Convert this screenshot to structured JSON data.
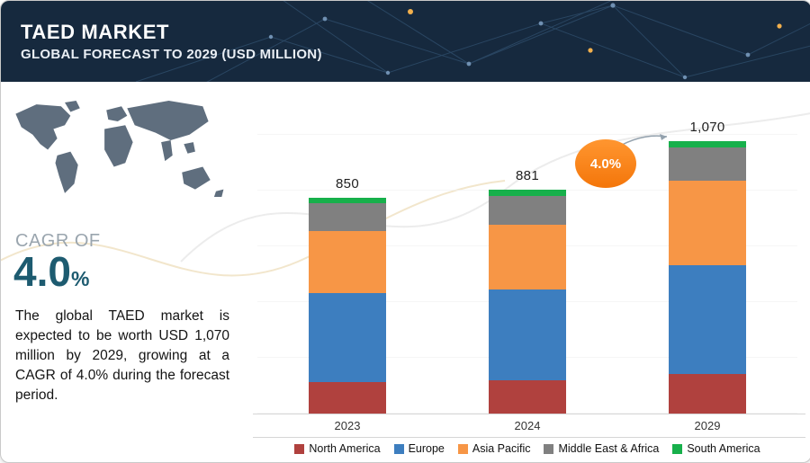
{
  "header": {
    "title": "TAED MARKET",
    "subtitle": "GLOBAL FORECAST TO 2029 (USD MILLION)"
  },
  "sidebar": {
    "cagr_label": "CAGR OF",
    "cagr_value": "4.0",
    "cagr_percent": "%",
    "description": "The global TAED market is expected to be worth USD 1,070 million by 2029, growing at a CAGR of 4.0% during the forecast period."
  },
  "chart_data": {
    "type": "bar",
    "stacked": true,
    "title": "TAED Market, Global Forecast to 2029 (USD Million)",
    "xlabel": "",
    "ylabel": "USD Million",
    "ylim": [
      0,
      1100
    ],
    "grid": true,
    "legend_position": "bottom",
    "categories": [
      "2023",
      "2024",
      "2029"
    ],
    "totals": [
      850,
      881,
      1070
    ],
    "total_labels": [
      "850",
      "881",
      "1,070"
    ],
    "series": [
      {
        "name": "North America",
        "color": "#b0413e",
        "values": [
          128,
          133,
          158
        ]
      },
      {
        "name": "Europe",
        "color": "#3d7ebf",
        "values": [
          347,
          357,
          428
        ]
      },
      {
        "name": "Asia Pacific",
        "color": "#f79646",
        "values": [
          243,
          252,
          330
        ]
      },
      {
        "name": "Middle East & Africa",
        "color": "#808080",
        "values": [
          108,
          114,
          128
        ]
      },
      {
        "name": "South America",
        "color": "#17b04b",
        "values": [
          24,
          25,
          26
        ]
      }
    ],
    "annotation": {
      "label": "4.0%",
      "color": "#f4760a",
      "target": "2029 bar"
    }
  }
}
